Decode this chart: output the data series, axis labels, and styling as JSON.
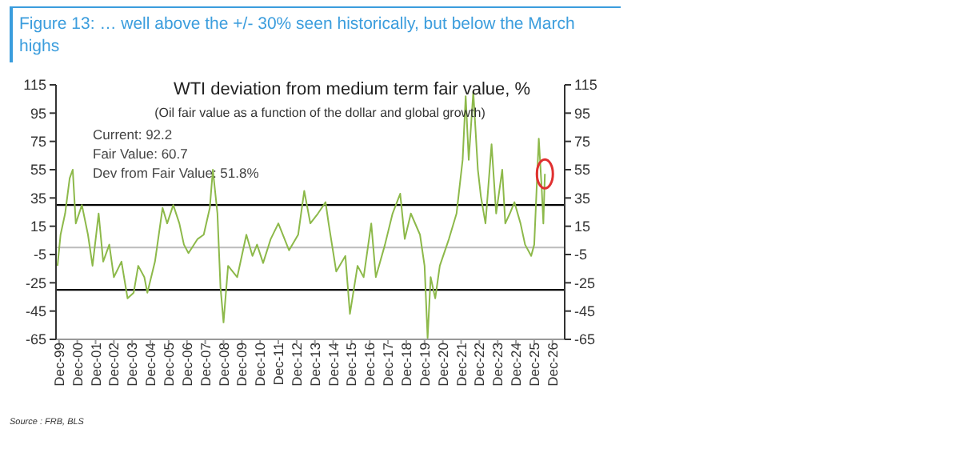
{
  "chart_data": {
    "type": "line",
    "title": "Figure 13: … well above the +/- 30% seen historically, but below the March highs",
    "subtitle": "WTI deviation from medium term fair value, %",
    "annotations": [
      "(Oil fair value as a function of the dollar and global growth)",
      "Current: 92.2",
      "Fair Value: 60.7",
      "Dev from Fair Value: 51.8%",
      "Source : FRB, BLS"
    ],
    "x": [
      "1999-11",
      "2000-01",
      "2000-04",
      "2000-07",
      "2000-09",
      "2000-11",
      "2001-03",
      "2001-07",
      "2001-10",
      "2002-02",
      "2002-05",
      "2002-09",
      "2002-12",
      "2003-05",
      "2003-09",
      "2004-01",
      "2004-04",
      "2004-08",
      "2004-10",
      "2005-03",
      "2005-08",
      "2005-11",
      "2006-03",
      "2006-07",
      "2006-10",
      "2007-01",
      "2007-07",
      "2007-11",
      "2008-03",
      "2008-05",
      "2008-08",
      "2008-10",
      "2008-12",
      "2009-03",
      "2009-09",
      "2010-03",
      "2010-07",
      "2010-10",
      "2011-02",
      "2011-07",
      "2011-12",
      "2012-07",
      "2013-01",
      "2013-05",
      "2013-09",
      "2014-02",
      "2014-07",
      "2014-09",
      "2015-02",
      "2015-08",
      "2015-11",
      "2016-04",
      "2016-08",
      "2017-01",
      "2017-04",
      "2017-10",
      "2018-03",
      "2018-08",
      "2018-11",
      "2019-03",
      "2019-09",
      "2019-12",
      "2020-02",
      "2020-04",
      "2020-07",
      "2020-10",
      "2021-04",
      "2021-09",
      "2022-01",
      "2022-03",
      "2022-05",
      "2022-08",
      "2022-11",
      "2023-01",
      "2023-04",
      "2023-08",
      "2023-11",
      "2024-03",
      "2024-05",
      "2024-08",
      "2024-11",
      "2025-03",
      "2025-06",
      "2025-10",
      "2025-12",
      "2026-03",
      "2026-05",
      "2026-06",
      "2026-07"
    ],
    "series": [
      {
        "color": "#8db94a",
        "values": [
          -13,
          9,
          24,
          49,
          55,
          17,
          30,
          9,
          -13,
          24,
          -10,
          2,
          -21,
          -10,
          -36,
          -32,
          -13,
          -21,
          -32,
          -10,
          28,
          17,
          30,
          17,
          2,
          -4,
          6,
          9,
          28,
          55,
          24,
          -28,
          -53,
          -13,
          -21,
          9,
          -6,
          2,
          -11,
          6,
          17,
          -2,
          9,
          40,
          17,
          24,
          32,
          17,
          -17,
          -6,
          -47,
          -13,
          -21,
          17,
          -21,
          2,
          24,
          38,
          6,
          24,
          9,
          -13,
          -64,
          -21,
          -36,
          -13,
          6,
          24,
          62,
          107,
          62,
          110,
          55,
          36,
          17,
          73,
          24,
          55,
          17,
          24,
          32,
          17,
          2,
          -6,
          2,
          77,
          40,
          17,
          52
        ]
      }
    ],
    "xlim": [
      "1999-10",
      "2027-08"
    ],
    "xticks": [
      {
        "value": "1999-12",
        "label": "Dec-99"
      },
      {
        "value": "2000-12",
        "label": "Dec-00"
      },
      {
        "value": "2001-12",
        "label": "Dec-01"
      },
      {
        "value": "2002-12",
        "label": "Dec-02"
      },
      {
        "value": "2003-12",
        "label": "Dec-03"
      },
      {
        "value": "2004-12",
        "label": "Dec-04"
      },
      {
        "value": "2005-12",
        "label": "Dec-05"
      },
      {
        "value": "2006-12",
        "label": "Dec-06"
      },
      {
        "value": "2007-12",
        "label": "Dec-07"
      },
      {
        "value": "2008-12",
        "label": "Dec-08"
      },
      {
        "value": "2009-12",
        "label": "Dec-09"
      },
      {
        "value": "2010-12",
        "label": "Dec-10"
      },
      {
        "value": "2011-12",
        "label": "Dec-11"
      },
      {
        "value": "2012-12",
        "label": "Dec-12"
      },
      {
        "value": "2013-12",
        "label": "Dec-13"
      },
      {
        "value": "2014-12",
        "label": "Dec-14"
      },
      {
        "value": "2015-12",
        "label": "Dec-15"
      },
      {
        "value": "2016-12",
        "label": "Dec-16"
      },
      {
        "value": "2017-12",
        "label": "Dec-17"
      },
      {
        "value": "2018-12",
        "label": "Dec-18"
      },
      {
        "value": "2019-12",
        "label": "Dec-19"
      },
      {
        "value": "2020-12",
        "label": "Dec-20"
      },
      {
        "value": "2021-12",
        "label": "Dec-21"
      },
      {
        "value": "2022-12",
        "label": "Dec-22"
      },
      {
        "value": "2023-12",
        "label": "Dec-23"
      },
      {
        "value": "2024-12",
        "label": "Dec-24"
      },
      {
        "value": "2025-12",
        "label": "Dec-25"
      },
      {
        "value": "2026-12",
        "label": "Dec-26"
      }
    ],
    "ylim": [
      -65,
      115
    ],
    "yticks": [
      -65,
      -45,
      -25,
      -5,
      15,
      35,
      55,
      75,
      95,
      115
    ],
    "y2lim": [
      -65,
      115
    ],
    "y2ticks": [
      -65,
      -45,
      -25,
      -5,
      15,
      35,
      55,
      75,
      95,
      115
    ],
    "ref_lines": [
      {
        "axis": "y",
        "value": 30,
        "color": "#000000"
      },
      {
        "axis": "y",
        "value": -30,
        "color": "#000000"
      },
      {
        "axis": "y",
        "value": 0,
        "color": "#bbbbbb"
      }
    ],
    "grid": false,
    "legend": false,
    "marker": "none",
    "line_style": "solid"
  }
}
